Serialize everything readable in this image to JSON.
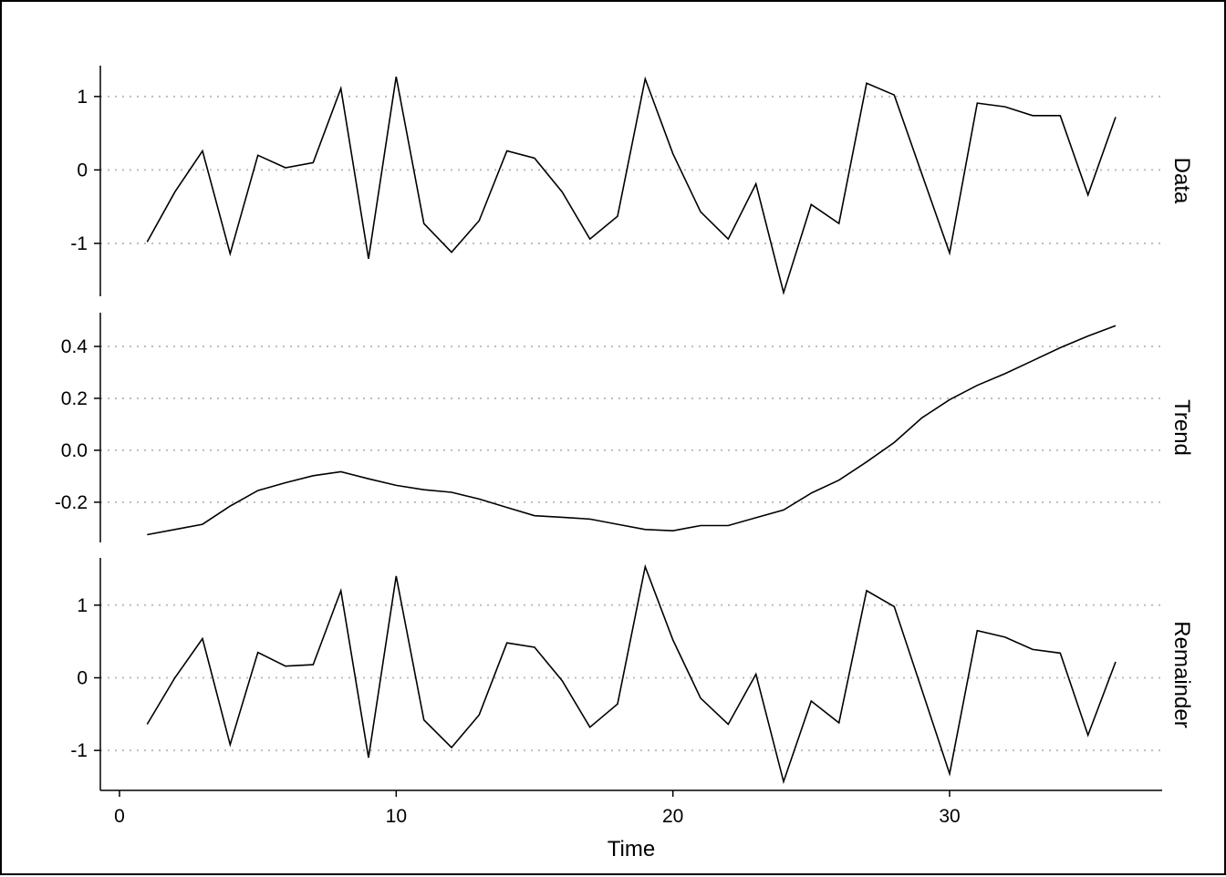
{
  "chart_data": {
    "type": "line",
    "xlabel": "Time",
    "x_ticks": [
      0,
      10,
      20,
      30
    ],
    "xlim": [
      0,
      37
    ],
    "x": [
      1,
      2,
      3,
      4,
      5,
      6,
      7,
      8,
      9,
      10,
      11,
      12,
      13,
      14,
      15,
      16,
      17,
      18,
      19,
      20,
      21,
      22,
      23,
      24,
      25,
      26,
      27,
      28,
      29,
      30,
      31,
      32,
      33,
      34,
      35,
      36
    ],
    "panels": [
      {
        "name": "Data",
        "ylim": [
          -1.72,
          1.42
        ],
        "y_ticks": [
          -1,
          0,
          1
        ],
        "y_tick_labels": [
          "-1",
          "0",
          "1"
        ],
        "values": [
          -0.98,
          -0.3,
          0.26,
          -1.14,
          0.2,
          0.03,
          0.1,
          1.11,
          -1.21,
          1.27,
          -0.73,
          -1.12,
          -0.69,
          0.26,
          0.16,
          -0.3,
          -0.94,
          -0.63,
          1.24,
          0.22,
          -0.57,
          -0.94,
          -0.19,
          -1.67,
          -0.47,
          -0.73,
          1.18,
          1.02,
          -0.06,
          -1.13,
          0.91,
          0.86,
          0.74,
          0.74,
          -0.34,
          0.72
        ]
      },
      {
        "name": "Trend",
        "ylim": [
          -0.355,
          0.53
        ],
        "y_ticks": [
          -0.2,
          0.0,
          0.2,
          0.4
        ],
        "y_tick_labels": [
          "-0.2",
          "0.0",
          "0.2",
          "0.4"
        ],
        "values": [
          -0.325,
          -0.305,
          -0.285,
          -0.215,
          -0.155,
          -0.125,
          -0.098,
          -0.083,
          -0.11,
          -0.135,
          -0.152,
          -0.162,
          -0.188,
          -0.22,
          -0.252,
          -0.258,
          -0.265,
          -0.285,
          -0.305,
          -0.31,
          -0.29,
          -0.29,
          -0.26,
          -0.23,
          -0.165,
          -0.115,
          -0.045,
          0.03,
          0.125,
          0.195,
          0.25,
          0.295,
          0.345,
          0.395,
          0.44,
          0.48
        ]
      },
      {
        "name": "Remainder",
        "ylim": [
          -1.55,
          1.65
        ],
        "y_ticks": [
          -1,
          0,
          1
        ],
        "y_tick_labels": [
          "-1",
          "0",
          "1"
        ],
        "values": [
          -0.64,
          0.0,
          0.54,
          -0.92,
          0.35,
          0.16,
          0.18,
          1.2,
          -1.1,
          1.4,
          -0.58,
          -0.96,
          -0.51,
          0.48,
          0.42,
          -0.04,
          -0.68,
          -0.36,
          1.53,
          0.52,
          -0.28,
          -0.64,
          0.05,
          -1.43,
          -0.32,
          -0.62,
          1.2,
          0.98,
          -0.17,
          -1.32,
          0.65,
          0.56,
          0.39,
          0.34,
          -0.79,
          0.22
        ]
      }
    ],
    "grid": "horizontal dotted at y ticks",
    "line_color": "#000000",
    "grid_color": "#bdbdbd"
  }
}
